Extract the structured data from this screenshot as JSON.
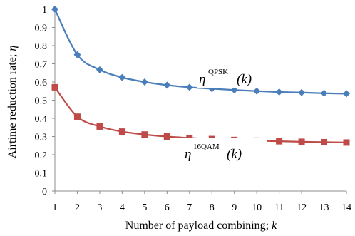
{
  "chart_data": {
    "type": "line",
    "xlabel_text": "Number of payload combining; ",
    "xlabel_var": "k",
    "ylabel_text": "Airtime reduction rate; ",
    "ylabel_var": "η",
    "x": [
      1,
      2,
      3,
      4,
      5,
      6,
      7,
      8,
      9,
      10,
      11,
      12,
      13,
      14
    ],
    "xlim": [
      1,
      14
    ],
    "ylim": [
      0,
      1
    ],
    "xticks": [
      "1",
      "2",
      "3",
      "4",
      "5",
      "6",
      "7",
      "8",
      "9",
      "10",
      "11",
      "12",
      "13",
      "14"
    ],
    "yticks": [
      "0",
      "0.1",
      "0.2",
      "0.3",
      "0.4",
      "0.5",
      "0.6",
      "0.7",
      "0.8",
      "0.9",
      "1"
    ],
    "grid": false,
    "legend": "none",
    "series": [
      {
        "marker": "diamond",
        "color": "#4a7ebb",
        "values": [
          1.0,
          0.75,
          0.667,
          0.625,
          0.6,
          0.583,
          0.571,
          0.563,
          0.556,
          0.55,
          0.545,
          0.542,
          0.538,
          0.536
        ],
        "annotation": {
          "base": "η",
          "sup": "QPSK",
          "arg": "(k)"
        }
      },
      {
        "marker": "square",
        "color": "#be4b48",
        "values": [
          0.571,
          0.409,
          0.355,
          0.327,
          0.311,
          0.3,
          0.292,
          0.286,
          0.281,
          0.277,
          0.274,
          0.271,
          0.269,
          0.267
        ],
        "annotation": {
          "base": "η",
          "sup": "16QAM",
          "arg": "(k)"
        }
      }
    ]
  }
}
